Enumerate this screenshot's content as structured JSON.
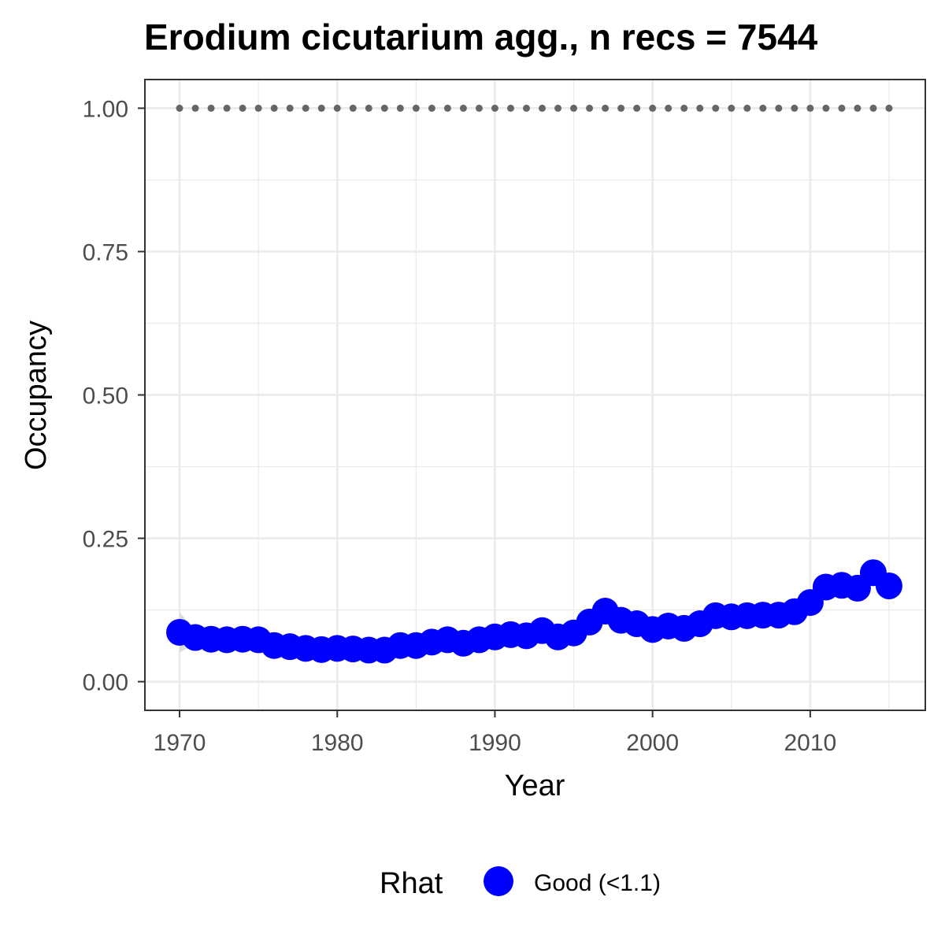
{
  "chart_data": {
    "type": "line",
    "title": "Erodium cicutarium agg., n recs = 7544",
    "xlabel": "Year",
    "ylabel": "Occupancy",
    "xlim": [
      1967.8,
      2017.3
    ],
    "ylim": [
      -0.05,
      1.05
    ],
    "x_ticks": [
      1970,
      1980,
      1990,
      2000,
      2010
    ],
    "x_tick_labels": [
      "1970",
      "1980",
      "1990",
      "2000",
      "2010"
    ],
    "y_ticks": [
      0,
      0.25,
      0.5,
      0.75,
      1.0
    ],
    "y_tick_labels": [
      "0.00",
      "0.25",
      "0.50",
      "0.75",
      "1.00"
    ],
    "grid": true,
    "legend": {
      "title": "Rhat",
      "position": "bottom",
      "entries": [
        {
          "label": "Good (<1.1)",
          "color": "#0000ff"
        }
      ]
    },
    "colors": {
      "points": "#0000ff",
      "reference": "#666666",
      "ribbon": "#d9d9d9",
      "grid": "#ebebeb",
      "panel_border": "#333333"
    },
    "series": [
      {
        "name": "Good (<1.1)",
        "x": [
          1970,
          1971,
          1972,
          1973,
          1974,
          1975,
          1976,
          1977,
          1978,
          1979,
          1980,
          1981,
          1982,
          1983,
          1984,
          1985,
          1986,
          1987,
          1988,
          1989,
          1990,
          1991,
          1992,
          1993,
          1994,
          1995,
          1996,
          1997,
          1998,
          1999,
          2000,
          2001,
          2002,
          2003,
          2004,
          2005,
          2006,
          2007,
          2008,
          2009,
          2010,
          2011,
          2012,
          2013,
          2014,
          2015
        ],
        "y": [
          0.086,
          0.077,
          0.074,
          0.073,
          0.074,
          0.073,
          0.063,
          0.061,
          0.058,
          0.056,
          0.058,
          0.057,
          0.055,
          0.055,
          0.063,
          0.063,
          0.069,
          0.073,
          0.067,
          0.073,
          0.078,
          0.082,
          0.08,
          0.089,
          0.078,
          0.085,
          0.104,
          0.123,
          0.107,
          0.101,
          0.091,
          0.097,
          0.093,
          0.101,
          0.115,
          0.113,
          0.115,
          0.116,
          0.116,
          0.122,
          0.138,
          0.165,
          0.168,
          0.163,
          0.19,
          0.167
        ]
      },
      {
        "name": "",
        "style": "dotted-reference",
        "x": [
          1970,
          1971,
          1972,
          1973,
          1974,
          1975,
          1976,
          1977,
          1978,
          1979,
          1980,
          1981,
          1982,
          1983,
          1984,
          1985,
          1986,
          1987,
          1988,
          1989,
          1990,
          1991,
          1992,
          1993,
          1994,
          1995,
          1996,
          1997,
          1998,
          1999,
          2000,
          2001,
          2002,
          2003,
          2004,
          2005,
          2006,
          2007,
          2008,
          2009,
          2010,
          2011,
          2012,
          2013,
          2014,
          2015
        ],
        "y": [
          1,
          1,
          1,
          1,
          1,
          1,
          1,
          1,
          1,
          1,
          1,
          1,
          1,
          1,
          1,
          1,
          1,
          1,
          1,
          1,
          1,
          1,
          1,
          1,
          1,
          1,
          1,
          1,
          1,
          1,
          1,
          1,
          1,
          1,
          1,
          1,
          1,
          1,
          1,
          1,
          1,
          1,
          1,
          1,
          1,
          1
        ]
      }
    ]
  }
}
